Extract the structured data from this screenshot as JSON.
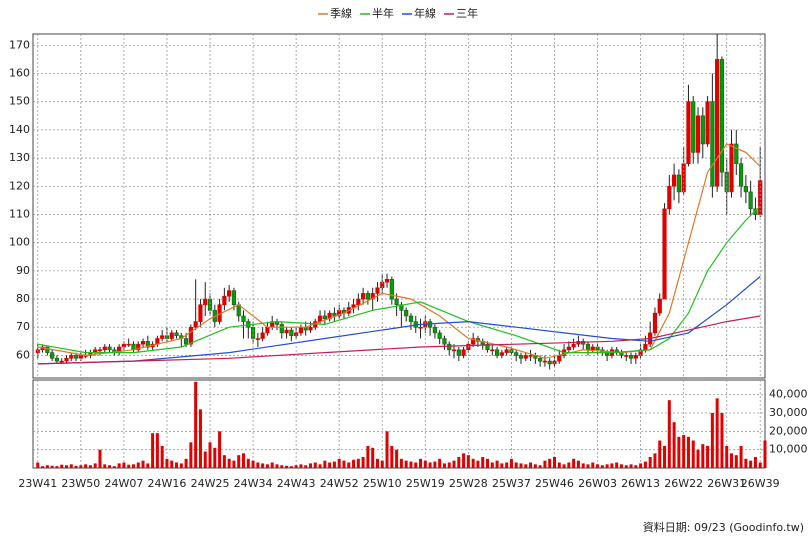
{
  "chart_data": [
    {
      "type": "candlestick",
      "legend": "top",
      "grid": true,
      "up_color": "#e00000",
      "down_color": "#00a000",
      "xlim": [
        -1,
        152
      ],
      "ylim": [
        52,
        174
      ],
      "yticks": [
        60,
        70,
        80,
        90,
        100,
        110,
        120,
        130,
        140,
        150,
        160,
        170
      ],
      "ohlc": [
        [
          61,
          64,
          59,
          62
        ],
        [
          62,
          64,
          61,
          63
        ],
        [
          63,
          63,
          60,
          61
        ],
        [
          61,
          62,
          58,
          59
        ],
        [
          59,
          60,
          57,
          58
        ],
        [
          58,
          59,
          57,
          58
        ],
        [
          58,
          60,
          57,
          59
        ],
        [
          59,
          61,
          58,
          60
        ],
        [
          60,
          61,
          58,
          59
        ],
        [
          59,
          61,
          58,
          60
        ],
        [
          60,
          62,
          59,
          60
        ],
        [
          60,
          62,
          59,
          61
        ],
        [
          61,
          63,
          60,
          62
        ],
        [
          62,
          63,
          60,
          62
        ],
        [
          62,
          64,
          61,
          63
        ],
        [
          63,
          64,
          61,
          62
        ],
        [
          62,
          63,
          60,
          61
        ],
        [
          61,
          64,
          60,
          63
        ],
        [
          63,
          65,
          62,
          64
        ],
        [
          64,
          66,
          63,
          64
        ],
        [
          64,
          65,
          61,
          62
        ],
        [
          62,
          65,
          61,
          64
        ],
        [
          64,
          66,
          63,
          65
        ],
        [
          65,
          67,
          62,
          63
        ],
        [
          63,
          65,
          62,
          64
        ],
        [
          64,
          67,
          63,
          66
        ],
        [
          66,
          69,
          65,
          67
        ],
        [
          67,
          70,
          65,
          66
        ],
        [
          66,
          69,
          65,
          68
        ],
        [
          68,
          69,
          66,
          67
        ],
        [
          67,
          68,
          63,
          66
        ],
        [
          66,
          68,
          63,
          64
        ],
        [
          64,
          71,
          63,
          70
        ],
        [
          70,
          87,
          69,
          72
        ],
        [
          72,
          80,
          70,
          78
        ],
        [
          78,
          86,
          74,
          80
        ],
        [
          80,
          82,
          74,
          76
        ],
        [
          76,
          78,
          70,
          72
        ],
        [
          72,
          80,
          71,
          78
        ],
        [
          78,
          84,
          76,
          81
        ],
        [
          81,
          85,
          79,
          83
        ],
        [
          83,
          84,
          76,
          78
        ],
        [
          78,
          79,
          72,
          74
        ],
        [
          74,
          76,
          66,
          72
        ],
        [
          72,
          73,
          66,
          70
        ],
        [
          70,
          72,
          64,
          66
        ],
        [
          66,
          68,
          63,
          66
        ],
        [
          66,
          70,
          65,
          68
        ],
        [
          68,
          72,
          67,
          70
        ],
        [
          70,
          74,
          69,
          72
        ],
        [
          72,
          73,
          69,
          71
        ],
        [
          71,
          72,
          66,
          68
        ],
        [
          68,
          70,
          66,
          69
        ],
        [
          69,
          70,
          65,
          67
        ],
        [
          67,
          70,
          66,
          68
        ],
        [
          68,
          71,
          67,
          70
        ],
        [
          70,
          72,
          67,
          69
        ],
        [
          69,
          72,
          68,
          70
        ],
        [
          70,
          73,
          69,
          72
        ],
        [
          72,
          76,
          71,
          74
        ],
        [
          74,
          76,
          71,
          73
        ],
        [
          73,
          76,
          72,
          75
        ],
        [
          75,
          77,
          72,
          74
        ],
        [
          74,
          78,
          73,
          76
        ],
        [
          76,
          77,
          73,
          75
        ],
        [
          75,
          79,
          74,
          77
        ],
        [
          77,
          80,
          75,
          78
        ],
        [
          78,
          82,
          76,
          80
        ],
        [
          80,
          84,
          78,
          82
        ],
        [
          82,
          83,
          78,
          80
        ],
        [
          80,
          84,
          76,
          82
        ],
        [
          82,
          86,
          79,
          84
        ],
        [
          84,
          89,
          82,
          86
        ],
        [
          86,
          89,
          84,
          87
        ],
        [
          87,
          88,
          78,
          80
        ],
        [
          80,
          82,
          74,
          78
        ],
        [
          78,
          79,
          70,
          76
        ],
        [
          76,
          77,
          72,
          74
        ],
        [
          74,
          75,
          69,
          72
        ],
        [
          72,
          74,
          68,
          70
        ],
        [
          70,
          73,
          66,
          70
        ],
        [
          70,
          74,
          68,
          72
        ],
        [
          72,
          73,
          67,
          70
        ],
        [
          70,
          71,
          66,
          68
        ],
        [
          68,
          69,
          64,
          66
        ],
        [
          66,
          67,
          62,
          64
        ],
        [
          64,
          65,
          60,
          62
        ],
        [
          62,
          64,
          59,
          62
        ],
        [
          62,
          63,
          58,
          60
        ],
        [
          60,
          63,
          59,
          62
        ],
        [
          62,
          65,
          61,
          64
        ],
        [
          64,
          68,
          63,
          66
        ],
        [
          66,
          67,
          63,
          65
        ],
        [
          65,
          66,
          62,
          64
        ],
        [
          64,
          65,
          61,
          62
        ],
        [
          62,
          64,
          60,
          62
        ],
        [
          62,
          63,
          59,
          60
        ],
        [
          60,
          62,
          59,
          61
        ],
        [
          61,
          63,
          60,
          62
        ],
        [
          62,
          63,
          60,
          61
        ],
        [
          61,
          62,
          58,
          60
        ],
        [
          60,
          61,
          57,
          59
        ],
        [
          59,
          61,
          58,
          60
        ],
        [
          60,
          62,
          58,
          60
        ],
        [
          60,
          61,
          57,
          59
        ],
        [
          59,
          60,
          56,
          58
        ],
        [
          58,
          60,
          56,
          58
        ],
        [
          58,
          59,
          55,
          57
        ],
        [
          57,
          60,
          56,
          58
        ],
        [
          58,
          62,
          57,
          60
        ],
        [
          60,
          64,
          59,
          62
        ],
        [
          62,
          65,
          61,
          63
        ],
        [
          63,
          66,
          62,
          64
        ],
        [
          64,
          67,
          63,
          65
        ],
        [
          65,
          66,
          62,
          64
        ],
        [
          64,
          65,
          60,
          62
        ],
        [
          62,
          64,
          61,
          63
        ],
        [
          63,
          64,
          60,
          62
        ],
        [
          62,
          63,
          60,
          61
        ],
        [
          61,
          62,
          58,
          60
        ],
        [
          60,
          63,
          59,
          62
        ],
        [
          62,
          63,
          60,
          61
        ],
        [
          61,
          62,
          59,
          60
        ],
        [
          60,
          61,
          58,
          60
        ],
        [
          60,
          61,
          57,
          59
        ],
        [
          59,
          61,
          57,
          60
        ],
        [
          60,
          64,
          59,
          62
        ],
        [
          62,
          67,
          61,
          64
        ],
        [
          64,
          72,
          63,
          68
        ],
        [
          68,
          77,
          67,
          75
        ],
        [
          75,
          82,
          74,
          80
        ],
        [
          80,
          114,
          80,
          112
        ],
        [
          112,
          124,
          110,
          120
        ],
        [
          120,
          128,
          115,
          124
        ],
        [
          124,
          126,
          114,
          118
        ],
        [
          118,
          134,
          117,
          128
        ],
        [
          128,
          156,
          127,
          150
        ],
        [
          150,
          152,
          128,
          132
        ],
        [
          132,
          148,
          128,
          145
        ],
        [
          145,
          148,
          130,
          135
        ],
        [
          135,
          152,
          134,
          150
        ],
        [
          150,
          160,
          116,
          120
        ],
        [
          120,
          174,
          118,
          165
        ],
        [
          165,
          166,
          120,
          125
        ],
        [
          125,
          130,
          110,
          118
        ],
        [
          118,
          140,
          116,
          135
        ],
        [
          135,
          140,
          124,
          128
        ],
        [
          128,
          130,
          116,
          120
        ],
        [
          120,
          124,
          114,
          118
        ],
        [
          118,
          122,
          110,
          112
        ],
        [
          112,
          116,
          108,
          110
        ],
        [
          110,
          134,
          109,
          122
        ]
      ],
      "series": [
        {
          "name": "季線",
          "color": "#e07828",
          "x": [
            0,
            10,
            20,
            30,
            36,
            42,
            48,
            56,
            64,
            72,
            78,
            84,
            90,
            98,
            106,
            114,
            122,
            128,
            132,
            136,
            140,
            144,
            148,
            151
          ],
          "values": [
            63,
            60,
            62,
            66,
            73,
            78,
            70,
            70,
            75,
            82,
            80,
            74,
            66,
            63,
            59,
            62,
            61,
            62,
            75,
            100,
            125,
            135,
            132,
            127
          ]
        },
        {
          "name": "半年",
          "color": "#20c020",
          "x": [
            0,
            10,
            20,
            30,
            40,
            50,
            60,
            70,
            80,
            90,
            100,
            110,
            120,
            128,
            132,
            136,
            140,
            144,
            148,
            151
          ],
          "values": [
            64,
            61,
            61,
            63,
            70,
            72,
            71,
            76,
            79,
            72,
            67,
            61,
            61,
            62,
            66,
            75,
            90,
            100,
            108,
            113
          ]
        },
        {
          "name": "年線",
          "color": "#2050d0",
          "x": [
            0,
            20,
            40,
            60,
            80,
            90,
            100,
            110,
            120,
            128,
            136,
            144,
            151
          ],
          "values": [
            57,
            58,
            61,
            66,
            71,
            72,
            70,
            68,
            66,
            65,
            68,
            78,
            88
          ]
        },
        {
          "name": "三年",
          "color": "#c02050",
          "x": [
            0,
            20,
            40,
            60,
            80,
            100,
            120,
            128,
            136,
            144,
            151
          ],
          "values": [
            57,
            58,
            59,
            61,
            63,
            64,
            65,
            66,
            69,
            72,
            74
          ]
        }
      ]
    },
    {
      "type": "bar",
      "color": "#e00000",
      "grid": true,
      "xlim": [
        -1,
        152
      ],
      "ylim": [
        0,
        48000
      ],
      "yticks": [
        {
          "value": 10000,
          "label": "10,000"
        },
        {
          "value": 20000,
          "label": "20,000"
        },
        {
          "value": 30000,
          "label": "30,000"
        },
        {
          "value": 40000,
          "label": "40,000"
        }
      ],
      "xticks": [
        {
          "value": 0,
          "label": "23W41"
        },
        {
          "value": 9,
          "label": "23W50"
        },
        {
          "value": 18,
          "label": "24W07"
        },
        {
          "value": 27,
          "label": "24W16"
        },
        {
          "value": 36,
          "label": "24W25"
        },
        {
          "value": 45,
          "label": "24W34"
        },
        {
          "value": 54,
          "label": "24W43"
        },
        {
          "value": 63,
          "label": "24W52"
        },
        {
          "value": 72,
          "label": "25W10"
        },
        {
          "value": 81,
          "label": "25W19"
        },
        {
          "value": 90,
          "label": "25W28"
        },
        {
          "value": 99,
          "label": "25W37"
        },
        {
          "value": 108,
          "label": "25W46"
        },
        {
          "value": 117,
          "label": "26W03"
        },
        {
          "value": 126,
          "label": "26W13"
        },
        {
          "value": 135,
          "label": "26W22"
        },
        {
          "value": 144,
          "label": "26W31"
        },
        {
          "value": 151,
          "label": "26W39"
        }
      ],
      "values": [
        3000,
        1000,
        1500,
        1200,
        1000,
        1800,
        1500,
        2000,
        1200,
        1500,
        2000,
        1500,
        2500,
        10000,
        2000,
        1500,
        1000,
        2500,
        3000,
        1800,
        2000,
        3000,
        4000,
        2500,
        19000,
        19000,
        12000,
        5000,
        4000,
        3000,
        2500,
        5000,
        14000,
        47000,
        32000,
        9000,
        14000,
        11000,
        20000,
        7000,
        5000,
        4000,
        7000,
        8000,
        5000,
        4000,
        3000,
        2500,
        2000,
        3000,
        2000,
        1500,
        1200,
        1000,
        1500,
        2000,
        1500,
        2500,
        3000,
        2000,
        4000,
        3000,
        3500,
        5000,
        4000,
        3000,
        4500,
        5000,
        6000,
        12000,
        11000,
        5000,
        4000,
        20000,
        12000,
        10000,
        5000,
        4000,
        3500,
        3000,
        5000,
        4000,
        3000,
        3500,
        5000,
        2500,
        3000,
        4000,
        6000,
        8000,
        7000,
        5000,
        4000,
        6000,
        5000,
        3000,
        4000,
        2500,
        3000,
        5000,
        3000,
        2500,
        2000,
        3000,
        2000,
        1500,
        4000,
        5000,
        6000,
        3000,
        2000,
        3000,
        5000,
        4000,
        2500,
        2000,
        3000,
        2000,
        1500,
        2000,
        2500,
        3000,
        2000,
        1500,
        2000,
        1500,
        2500,
        3500,
        6000,
        8000,
        15000,
        12000,
        37000,
        25000,
        17000,
        18000,
        17000,
        15000,
        10000,
        13000,
        12000,
        30000,
        38000,
        30000,
        12000,
        8000,
        7000,
        12000,
        5000,
        4000,
        6000,
        3000,
        15000
      ]
    }
  ],
  "footer": "資料日期: 09/23 (Goodinfo.tw)"
}
